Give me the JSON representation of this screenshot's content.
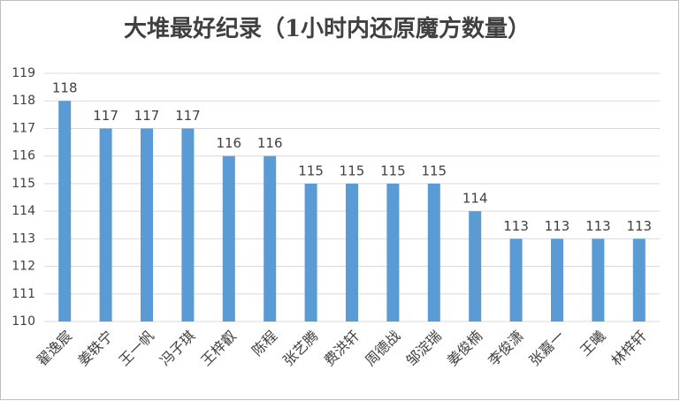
{
  "chart_data": {
    "type": "bar",
    "title": "大堆最好纪录（1小时内还原魔方数量）",
    "categories": [
      "翟逸宸",
      "姜轶宁",
      "王一帆",
      "冯子琪",
      "王梓叡",
      "陈程",
      "张艺腾",
      "费洪轩",
      "周德战",
      "邹淀瑞",
      "姜俊楠",
      "李俊潇",
      "张嘉一",
      "王曦",
      "林梓轩"
    ],
    "values": [
      118,
      117,
      117,
      117,
      116,
      116,
      115,
      115,
      115,
      115,
      114,
      113,
      113,
      113,
      113
    ],
    "color": "#5b9bd5",
    "ylim": [
      110,
      119
    ],
    "yticks": [
      110,
      111,
      112,
      113,
      114,
      115,
      116,
      117,
      118,
      119
    ],
    "grid": true
  }
}
